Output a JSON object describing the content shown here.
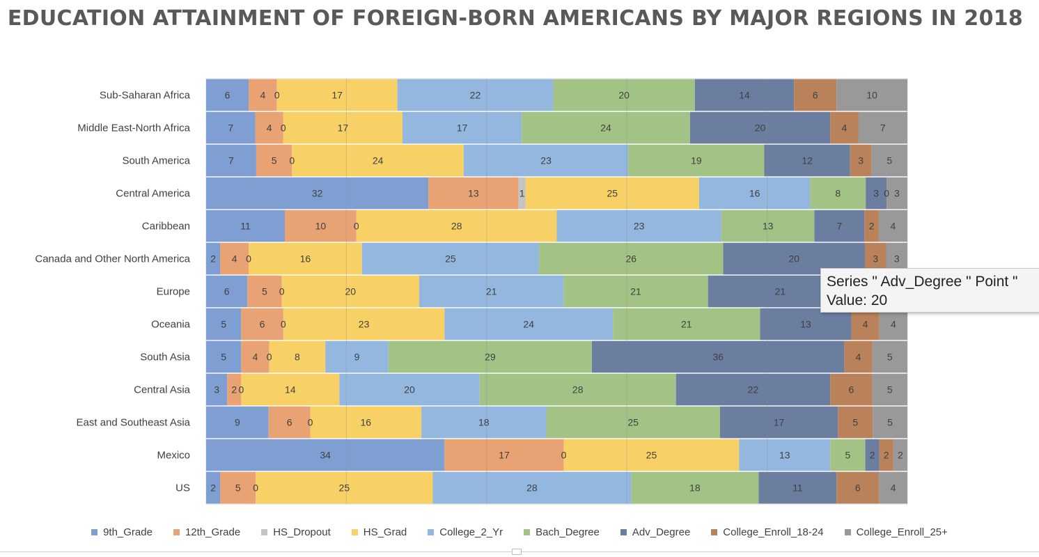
{
  "chart_data": {
    "type": "bar",
    "orientation": "horizontal",
    "stacked": "100%",
    "title": "EDUCATION ATTAINMENT OF FOREIGN-BORN AMERICANS BY MAJOR REGIONS IN 2018",
    "categories": [
      "Sub-Saharan Africa",
      "Middle East-North Africa",
      "South America",
      "Central America",
      "Caribbean",
      "Canada and Other North America",
      "Europe",
      "Oceania",
      "South Asia",
      "Central Asia",
      "East and Southeast Asia",
      "Mexico",
      "US"
    ],
    "series": [
      {
        "name": "9th_Grade",
        "color": "#7f9fd3",
        "values": [
          6,
          7,
          7,
          32,
          11,
          2,
          6,
          5,
          5,
          3,
          9,
          34,
          2
        ]
      },
      {
        "name": "12th_Grade",
        "color": "#e8a273",
        "values": [
          4,
          4,
          5,
          13,
          10,
          4,
          5,
          6,
          4,
          2,
          6,
          17,
          5
        ]
      },
      {
        "name": "HS_Dropout",
        "color": "#c4c4c4",
        "values": [
          0,
          0,
          0,
          1,
          0,
          0,
          0,
          0,
          0,
          0,
          0,
          0,
          0
        ]
      },
      {
        "name": "HS_Grad",
        "color": "#f8d166",
        "values": [
          17,
          17,
          24,
          25,
          28,
          16,
          20,
          23,
          8,
          14,
          16,
          25,
          25
        ]
      },
      {
        "name": "College_2_Yr",
        "color": "#93b7de",
        "values": [
          22,
          17,
          23,
          16,
          23,
          25,
          21,
          24,
          9,
          20,
          18,
          13,
          28
        ]
      },
      {
        "name": "Bach_Degree",
        "color": "#a3c386",
        "values": [
          20,
          24,
          19,
          8,
          13,
          26,
          21,
          21,
          29,
          28,
          25,
          5,
          18
        ]
      },
      {
        "name": "Adv_Degree",
        "color": "#6b7ea0",
        "values": [
          14,
          20,
          12,
          3,
          7,
          20,
          21,
          13,
          36,
          22,
          17,
          2,
          11
        ]
      },
      {
        "name": "College_Enroll_18-24",
        "color": "#b9825a",
        "values": [
          6,
          4,
          3,
          0,
          2,
          3,
          4,
          4,
          4,
          6,
          5,
          2,
          6
        ]
      },
      {
        "name": "College_Enroll_25+",
        "color": "#999999",
        "values": [
          10,
          7,
          5,
          3,
          4,
          3,
          4,
          4,
          5,
          5,
          5,
          2,
          4
        ]
      }
    ],
    "xlim": [
      0,
      100
    ],
    "grid": true,
    "legend": "bottom"
  },
  "tooltip": {
    "line1": "Series \" Adv_Degree \" Point \"",
    "line2": "Value: 20"
  }
}
